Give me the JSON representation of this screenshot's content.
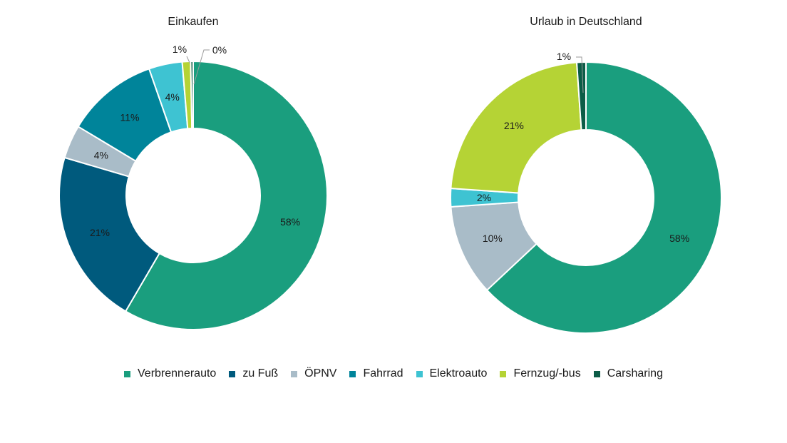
{
  "chart_data": [
    {
      "type": "pie",
      "title": "Einkaufen",
      "categories": [
        "Verbrennerauto",
        "zu Fuß",
        "ÖPNV",
        "Fahrrad",
        "Elektroauto",
        "Fernzug/-bus",
        "Carsharing"
      ],
      "values": [
        58,
        21,
        4,
        11,
        4,
        1,
        0.3
      ],
      "labels": [
        "58%",
        "21%",
        "4%",
        "11%",
        "4%",
        "1%",
        "0%"
      ]
    },
    {
      "type": "pie",
      "title": "Urlaub in Deutschland",
      "categories": [
        "Verbrennerauto",
        "zu Fuß",
        "ÖPNV",
        "Fahrrad",
        "Elektroauto",
        "Fernzug/-bus",
        "Carsharing"
      ],
      "values": [
        58,
        0,
        10,
        0,
        2,
        21,
        1
      ],
      "labels": [
        "58%",
        "",
        "10%",
        "",
        "2%",
        "21%",
        "1%"
      ]
    }
  ],
  "colors": [
    "#1a9e7e",
    "#005a7d",
    "#a9bcc8",
    "#00849a",
    "#3ec3d2",
    "#b5d335",
    "#0c5c47"
  ],
  "legend": [
    "Verbrennerauto",
    "zu Fuß",
    "ÖPNV",
    "Fahrrad",
    "Elektroauto",
    "Fernzug/-bus",
    "Carsharing"
  ]
}
